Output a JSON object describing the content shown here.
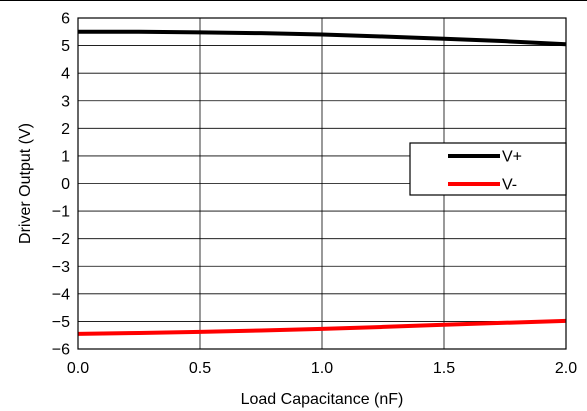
{
  "chart_data": {
    "type": "line",
    "title": "",
    "xlabel": "Load Capacitance (nF)",
    "ylabel": "Driver Output (V)",
    "xlim": [
      0,
      2
    ],
    "ylim": [
      -6,
      6
    ],
    "x_ticks": [
      0,
      0.5,
      1,
      1.5,
      2
    ],
    "x_tick_labels": [
      "0.0",
      "0.5",
      "1.0",
      "1.5",
      "2.0"
    ],
    "y_ticks": [
      -6,
      -5,
      -4,
      -3,
      -2,
      -1,
      0,
      1,
      2,
      3,
      4,
      5,
      6
    ],
    "y_tick_labels": [
      "−6",
      "−5",
      "−4",
      "−3",
      "−2",
      "−1",
      "0",
      "1",
      "2",
      "3",
      "4",
      "5",
      "6"
    ],
    "grid": true,
    "legend_position": "right",
    "series": [
      {
        "name": "V+",
        "color": "#000000",
        "x": [
          0,
          0.25,
          0.5,
          0.75,
          1,
          1.25,
          1.5,
          1.75,
          2
        ],
        "y": [
          5.5,
          5.5,
          5.48,
          5.45,
          5.4,
          5.33,
          5.25,
          5.16,
          5.05
        ]
      },
      {
        "name": "V-",
        "color": "#ff0000",
        "x": [
          0,
          0.25,
          0.5,
          0.75,
          1,
          1.25,
          1.5,
          1.75,
          2
        ],
        "y": [
          -5.45,
          -5.42,
          -5.38,
          -5.33,
          -5.27,
          -5.2,
          -5.12,
          -5.05,
          -4.98
        ]
      }
    ]
  }
}
